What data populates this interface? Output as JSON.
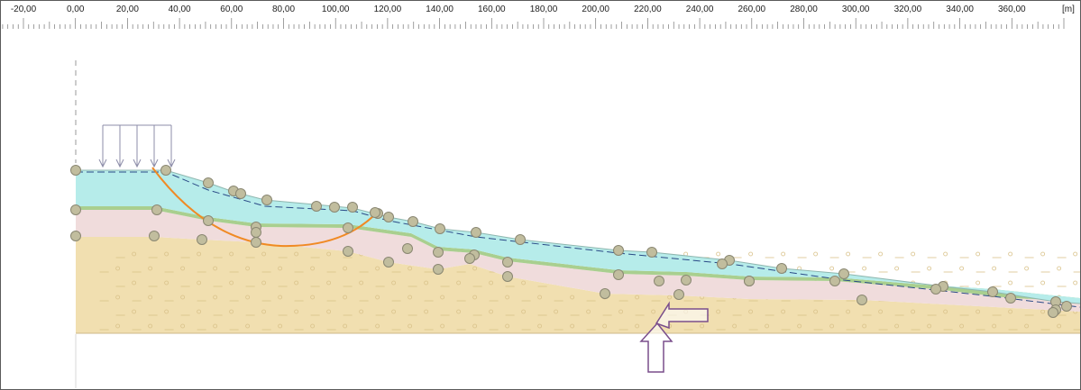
{
  "ruler": {
    "unit": "[m]",
    "ticks": [
      "-20,00",
      "0,00",
      "20,00",
      "40,00",
      "60,00",
      "80,00",
      "100,00",
      "120,00",
      "140,00",
      "160,00",
      "180,00",
      "200,00",
      "220,00",
      "240,00",
      "260,00",
      "280,00",
      "300,00",
      "320,00",
      "340,00",
      "360,00"
    ]
  },
  "model": {
    "surcharge_arrows": 5,
    "colors": {
      "soil_top": "#b6ecea",
      "soil_middle": "#f0dcdc",
      "soil_bottom": "#f1dfb0",
      "green_band": "#a9cf8f",
      "slip_surface": "#f08a24",
      "water_line": "#2a4a86",
      "point_fill": "#c1bd9e",
      "point_stroke": "#8a8772",
      "load_arrow": "#8c8ca8",
      "nav_arrow": "#7a4e8c"
    }
  }
}
